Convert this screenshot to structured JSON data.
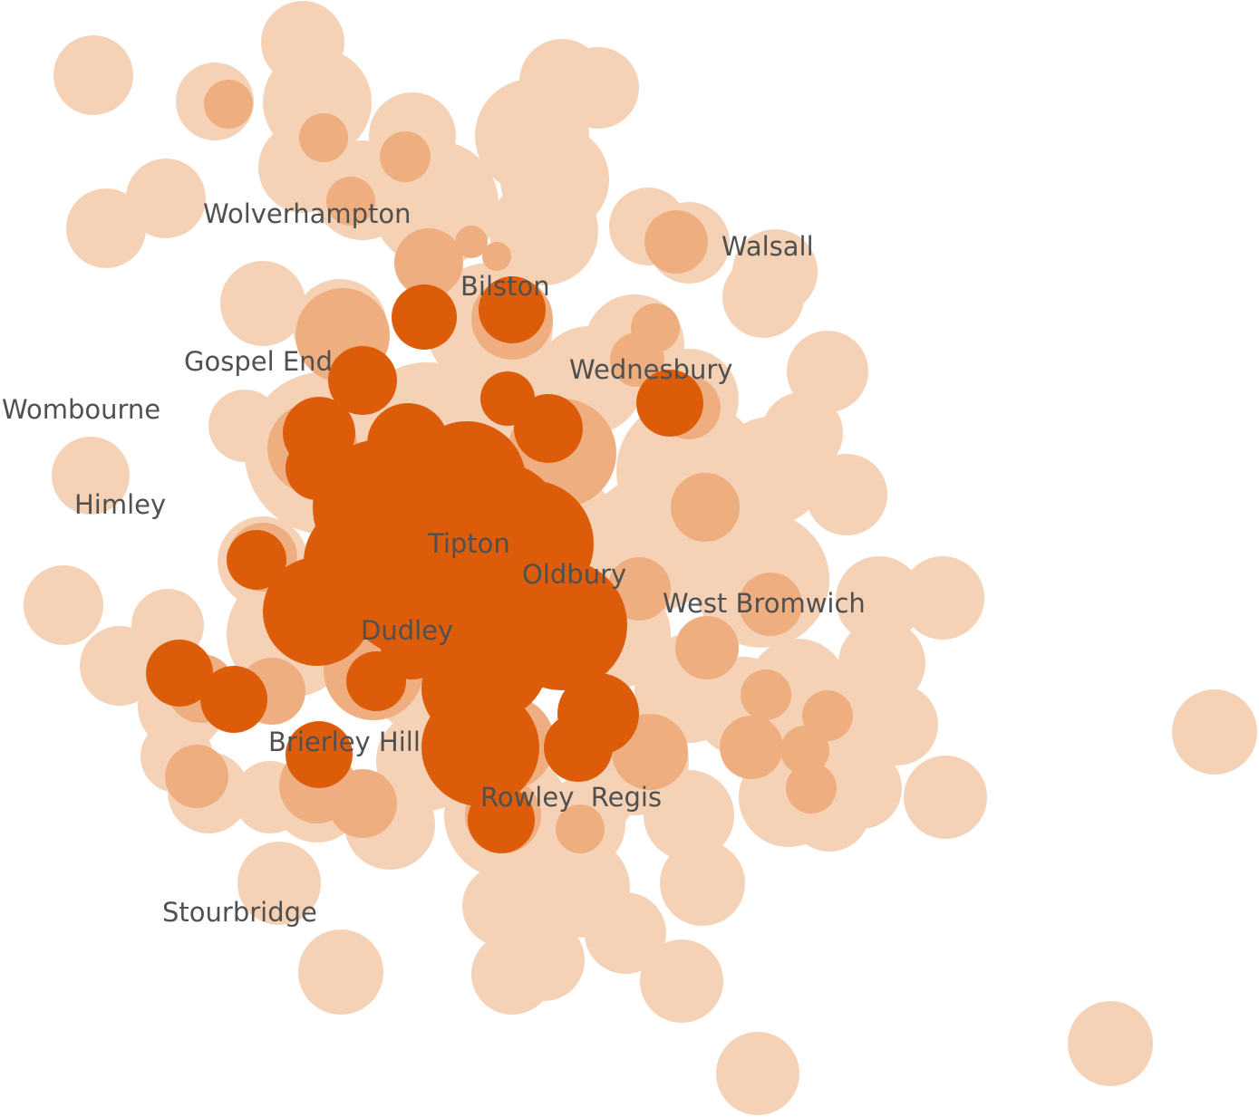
{
  "map": {
    "labels": {
      "wolverhampton": "Wolverhampton",
      "walsall": "Walsall",
      "bilston": "Bilston",
      "gospel_end": "Gospel End",
      "wednesbury": "Wednesbury",
      "wombourne": "Wombourne",
      "himley": "Himley",
      "tipton": "Tipton",
      "oldbury": "Oldbury",
      "west_bromwich": "West Bromwich",
      "dudley": "Dudley",
      "brierley_hill": "Brierley Hill",
      "rowley_regis": "Rowley  Regis",
      "stourbridge": "Stourbridge"
    },
    "colors": {
      "background": "#ffffff",
      "tier_low": "#f5d2b6",
      "tier_mid": "#eeae80",
      "tier_high": "#dd5c0a",
      "label": "#505050"
    }
  }
}
